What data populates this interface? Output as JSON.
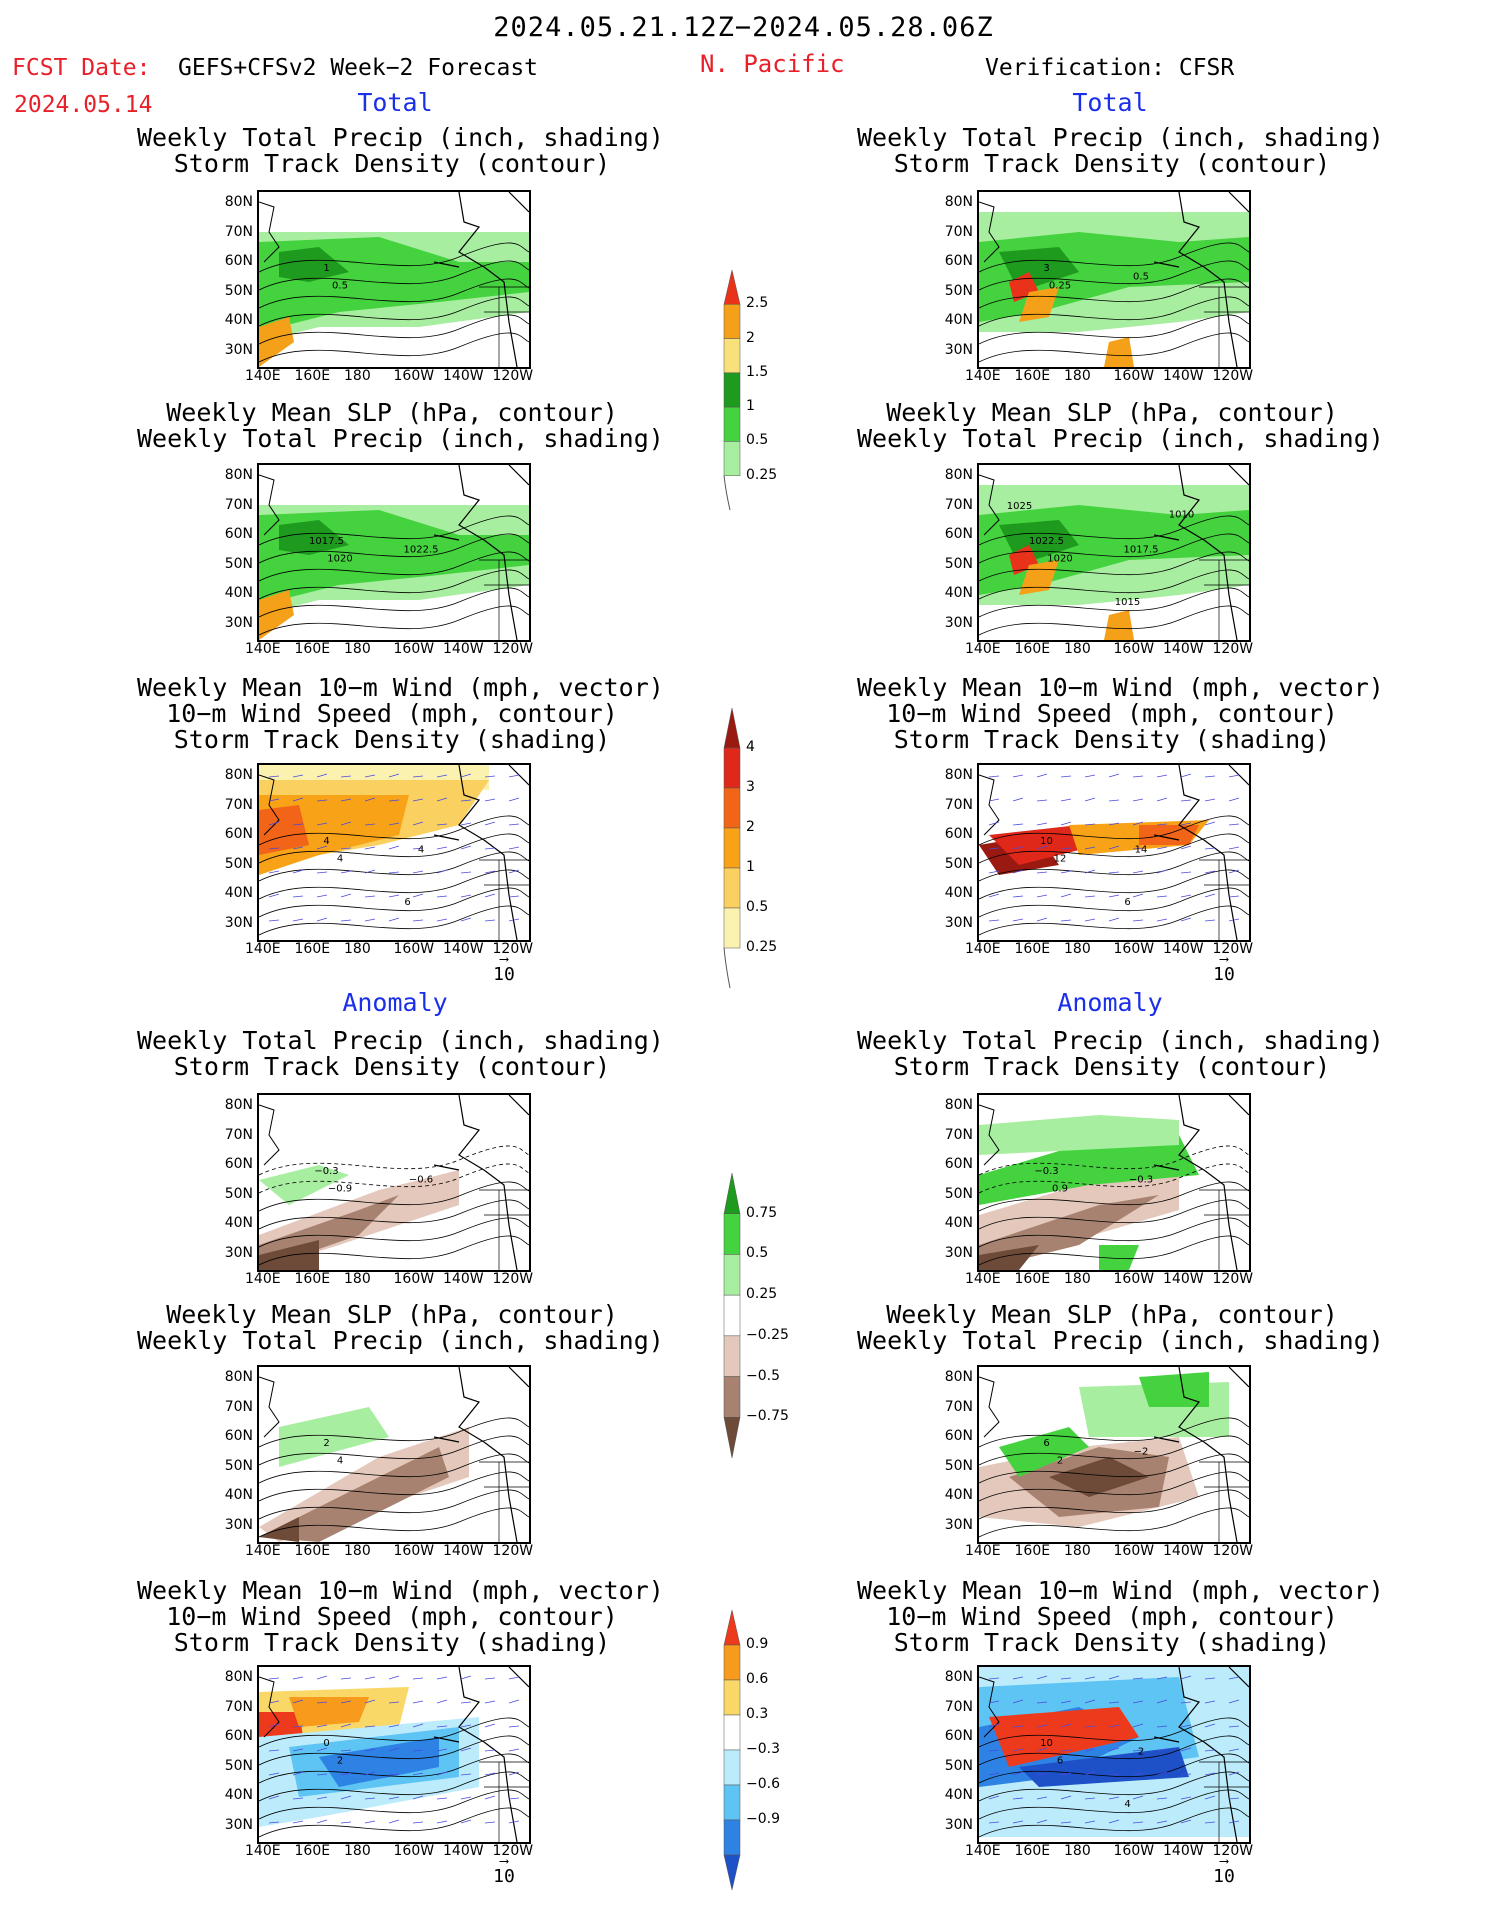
{
  "header": {
    "title": "2024.05.21.12Z−2024.05.28.06Z",
    "fcst_label": "FCST Date:",
    "fcst_model": "GEFS+CFSv2 Week−2 Forecast",
    "fcst_date": "2024.05.14",
    "region": "N. Pacific",
    "verification": "Verification: CFSR"
  },
  "sections": {
    "total": "Total",
    "anomaly": "Anomaly"
  },
  "panel_titles": {
    "precip_storm": [
      "Weekly Total Precip (inch, shading)",
      "Storm Track Density (contour)"
    ],
    "slp_precip": [
      "Weekly Mean SLP (hPa, contour)",
      "Weekly Total Precip (inch, shading)"
    ],
    "wind_storm": [
      "Weekly Mean 10−m Wind (mph, vector)",
      "10−m Wind Speed (mph, contour)",
      "Storm Track Density (shading)"
    ]
  },
  "axes": {
    "lat": [
      "80N",
      "70N",
      "60N",
      "50N",
      "40N",
      "30N"
    ],
    "lon": [
      "140E",
      "160E",
      "180",
      "160W",
      "140W",
      "120W"
    ]
  },
  "vector_ref": "10",
  "colorbars": [
    {
      "labels": [
        "2.5",
        "2",
        "1.5",
        "1",
        "0.5",
        "0.25"
      ],
      "colors": [
        "#e8321a",
        "#f4a018",
        "#f8e07a",
        "#1e9a1e",
        "#44d23e",
        "#a8eea0"
      ]
    },
    {
      "labels": [
        "4",
        "3",
        "2",
        "1",
        "0.5",
        "0.25"
      ],
      "colors": [
        "#9a1a12",
        "#e0281a",
        "#f26418",
        "#f8a218",
        "#fad060",
        "#fcf2b0"
      ]
    },
    {
      "labels": [
        "0.75",
        "0.5",
        "0.25",
        "−0.25",
        "−0.5",
        "−0.75"
      ],
      "colors": [
        "#1e9a1e",
        "#44d23e",
        "#a8eea0",
        "#ffffff",
        "#e4c8bc",
        "#a88270",
        "#6e4a38"
      ]
    },
    {
      "labels": [
        "0.9",
        "0.6",
        "0.3",
        "−0.3",
        "−0.6",
        "−0.9"
      ],
      "colors": [
        "#ee3a1c",
        "#f89a1c",
        "#fad868",
        "#ffffff",
        "#bcecfc",
        "#5ec4f4",
        "#2e82e4",
        "#1e50c8"
      ]
    }
  ],
  "contour_labels": {
    "f1": [
      "1",
      "0.5"
    ],
    "f2": [
      "1017.5",
      "1020",
      "1022.5"
    ],
    "f3": [
      "4",
      "4",
      "4",
      "6"
    ],
    "f4": [
      "−0.3",
      "−0.9",
      "−0.6"
    ],
    "f5": [
      "2",
      "4"
    ],
    "f6": [
      "0",
      "2"
    ],
    "v1": [
      "3",
      "0.25",
      "0.5"
    ],
    "v2": [
      "1022.5",
      "1020",
      "1017.5",
      "1015",
      "1010",
      "1025"
    ],
    "v3": [
      "10",
      "12",
      "14",
      "6"
    ],
    "v4": [
      "−0.3",
      "0.9",
      "−0.3"
    ],
    "v5": [
      "6",
      "2",
      "−2"
    ],
    "v6": [
      "10",
      "6",
      "2",
      "4"
    ]
  }
}
